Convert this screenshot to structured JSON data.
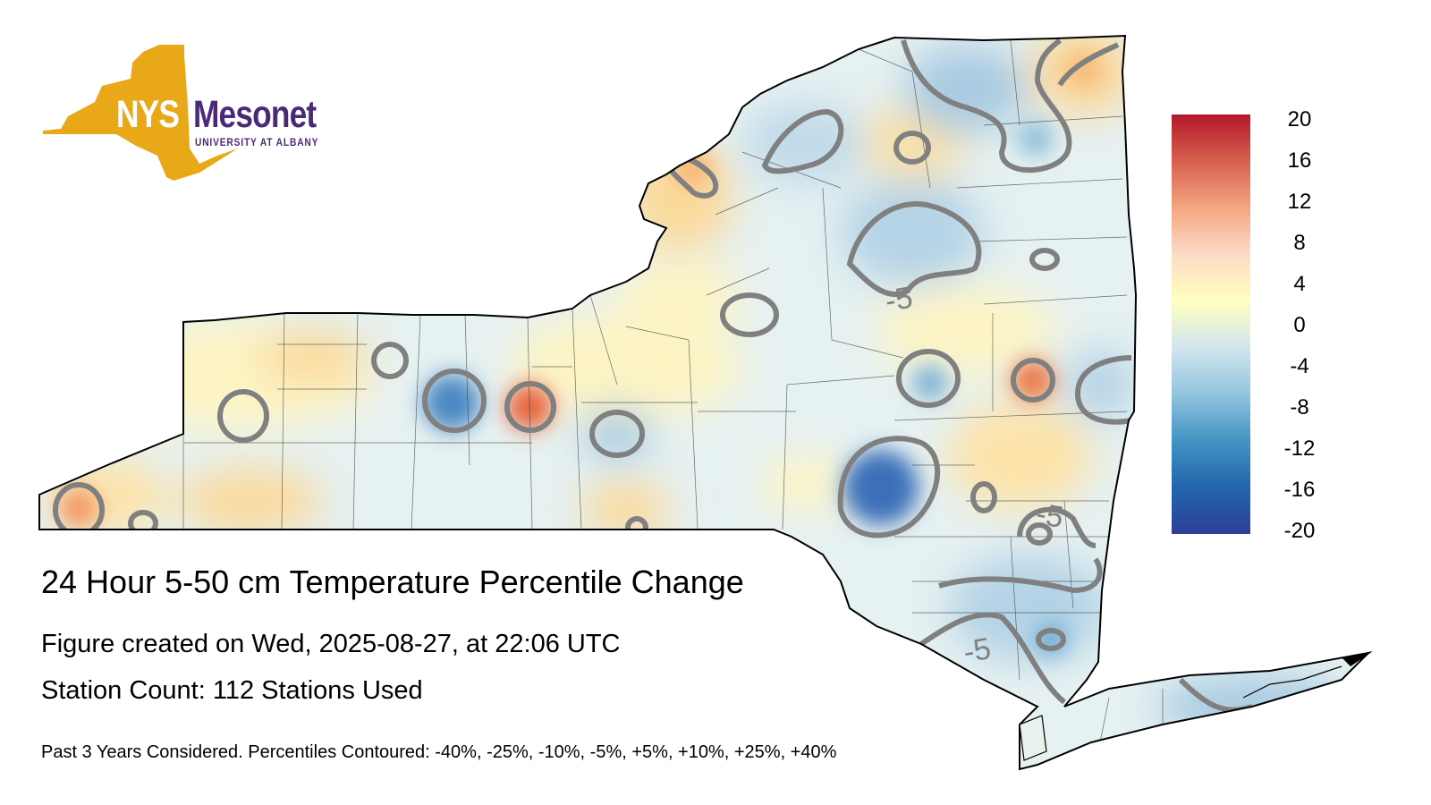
{
  "logo": {
    "nys": "NYS",
    "mesonet": "Mesonet",
    "university": "UNIVERSITY AT ALBANY",
    "gold": "#e8a817",
    "purple": "#4a2a78"
  },
  "title": "24 Hour 5-50 cm Temperature Percentile Change",
  "created": "Figure created on Wed, 2025-08-27, at 22:06 UTC",
  "station_count": "Station Count: 112 Stations Used",
  "footnote": "Past 3 Years Considered. Percentiles Contoured: -40%, -25%, -10%, -5%, +5%, +10%, +25%, +40%",
  "colorbar": {
    "labels": [
      "20",
      "16",
      "12",
      "8",
      "4",
      "0",
      "-4",
      "-8",
      "-12",
      "-16",
      "-20"
    ],
    "colors": [
      "#b2182b",
      "#d6604d",
      "#f4a582",
      "#fddbc7",
      "#ffffbf",
      "#d1e5f0",
      "#92c5de",
      "#4393c3",
      "#2166ac",
      "#2c3e99"
    ]
  },
  "contour_labels": [
    "-5",
    "-5",
    "-5"
  ],
  "map": {
    "region": "New York State",
    "contour_color": "#808080",
    "outline_color": "#000000"
  }
}
